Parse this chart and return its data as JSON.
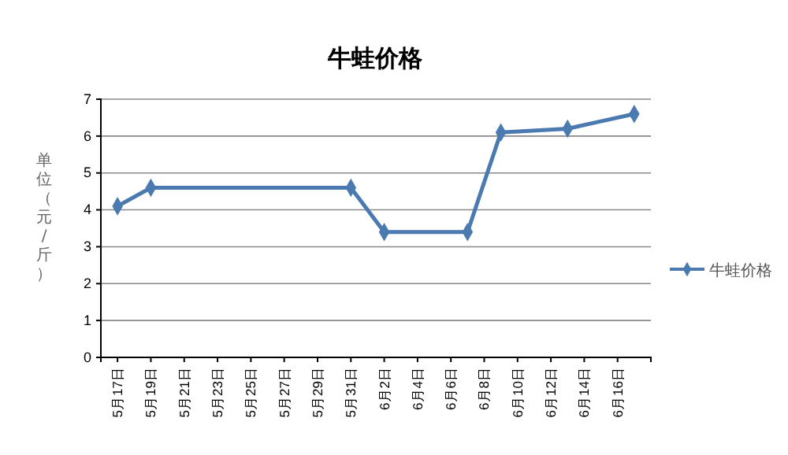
{
  "chart_data": {
    "type": "line",
    "title": "牛蛙价格",
    "ylabel": "单位（元/斤）",
    "x": [
      "--05-17",
      "--05-19",
      "--05-31",
      "--06-02",
      "--06-07",
      "--06-09",
      "--06-13",
      "--06-17"
    ],
    "series": [
      {
        "name": "牛蛙价格",
        "color": "#4a7ab0",
        "values": [
          4.1,
          4.6,
          4.6,
          3.4,
          3.4,
          6.1,
          6.2,
          6.6
        ]
      }
    ],
    "xlim": [
      "--05-16",
      "--06-18"
    ],
    "xticks": [
      {
        "value": "--05-17",
        "label": "5月17日"
      },
      {
        "value": "--05-19",
        "label": "5月19日"
      },
      {
        "value": "--05-21",
        "label": "5月21日"
      },
      {
        "value": "--05-23",
        "label": "5月23日"
      },
      {
        "value": "--05-25",
        "label": "5月25日"
      },
      {
        "value": "--05-27",
        "label": "5月27日"
      },
      {
        "value": "--05-29",
        "label": "5月29日"
      },
      {
        "value": "--05-31",
        "label": "5月31日"
      },
      {
        "value": "--06-02",
        "label": "6月2日"
      },
      {
        "value": "--06-04",
        "label": "6月4日"
      },
      {
        "value": "--06-06",
        "label": "6月6日"
      },
      {
        "value": "--06-08",
        "label": "6月8日"
      },
      {
        "value": "--06-10",
        "label": "6月10日"
      },
      {
        "value": "--06-12",
        "label": "6月12日"
      },
      {
        "value": "--06-14",
        "label": "6月14日"
      },
      {
        "value": "--06-16",
        "label": "6月16日"
      }
    ],
    "ylim": [
      0,
      7
    ],
    "yticks": [
      0,
      1,
      2,
      3,
      4,
      5,
      6,
      7
    ],
    "grid": "y",
    "legend": "right",
    "marker": "diamond",
    "line_style": "solid"
  }
}
